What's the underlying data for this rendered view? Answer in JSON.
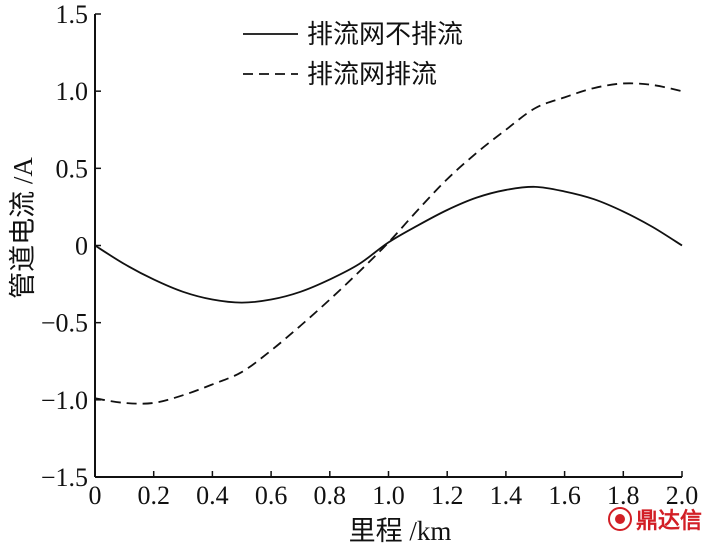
{
  "chart_data": {
    "type": "line",
    "xlabel": "里程 /km",
    "ylabel": "管道电流 /A",
    "xlim": [
      0,
      2.0
    ],
    "ylim": [
      -1.5,
      1.5
    ],
    "x_ticks": [
      "0",
      "0.2",
      "0.4",
      "0.6",
      "0.8",
      "1.0",
      "1.2",
      "1.4",
      "1.6",
      "1.8",
      "2.0"
    ],
    "y_ticks": [
      "1.5",
      "1.0",
      "0.5",
      "0",
      "−0.5",
      "−1.0",
      "−1.5"
    ],
    "grid": false,
    "legend_position": "top",
    "series": [
      {
        "name": "排流网不排流",
        "style": "solid",
        "color": "#111111",
        "x": [
          0,
          0.1,
          0.2,
          0.3,
          0.4,
          0.5,
          0.6,
          0.7,
          0.8,
          0.9,
          1.0,
          1.1,
          1.2,
          1.3,
          1.4,
          1.5,
          1.6,
          1.7,
          1.8,
          1.9,
          2.0
        ],
        "y": [
          0,
          -0.12,
          -0.22,
          -0.3,
          -0.35,
          -0.37,
          -0.35,
          -0.3,
          -0.22,
          -0.12,
          0.02,
          0.13,
          0.23,
          0.31,
          0.36,
          0.38,
          0.35,
          0.3,
          0.22,
          0.12,
          0
        ]
      },
      {
        "name": "排流网排流",
        "style": "dashed",
        "color": "#111111",
        "x": [
          0,
          0.1,
          0.2,
          0.3,
          0.4,
          0.5,
          0.6,
          0.7,
          0.8,
          0.9,
          1.0,
          1.1,
          1.2,
          1.3,
          1.4,
          1.5,
          1.6,
          1.7,
          1.8,
          1.9,
          2.0
        ],
        "y": [
          -0.99,
          -1.02,
          -1.02,
          -0.97,
          -0.9,
          -0.82,
          -0.68,
          -0.52,
          -0.35,
          -0.17,
          0.02,
          0.23,
          0.43,
          0.6,
          0.75,
          0.89,
          0.96,
          1.02,
          1.05,
          1.04,
          1.0
        ]
      }
    ]
  },
  "watermark": {
    "text": "鼎达信",
    "color": "#d21f26"
  }
}
